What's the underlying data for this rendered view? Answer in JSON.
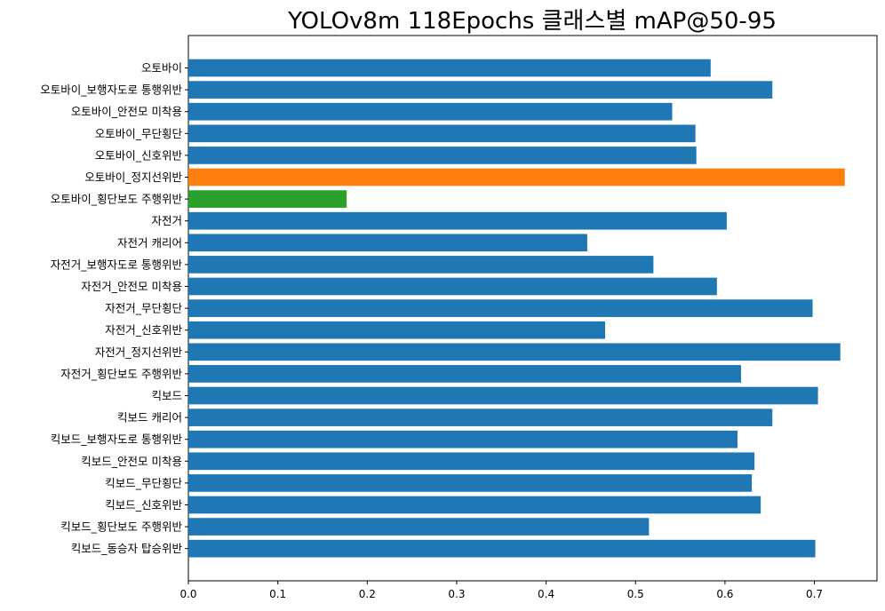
{
  "chart_data": {
    "type": "bar",
    "orientation": "horizontal",
    "title": "YOLOv8m 118Epochs 클래스별 mAP@50-95",
    "xlabel": "",
    "ylabel": "",
    "xlim": [
      0,
      0.77
    ],
    "xticks": [
      "0.0",
      "0.1",
      "0.2",
      "0.3",
      "0.4",
      "0.5",
      "0.6",
      "0.7"
    ],
    "grid": false,
    "categories": [
      "오토바이",
      "오토바이_보행자도로 통행위반",
      "오토바이_안전모 미착용",
      "오토바이_무단횡단",
      "오토바이_신호위반",
      "오토바이_정지선위반",
      "오토바이_횡단보도 주행위반",
      "자전거",
      "자전거 캐리어",
      "자전거_보행자도로 통행위반",
      "자전거_안전모 미착용",
      "자전거_무단횡단",
      "자전거_신호위반",
      "자전거_정지선위반",
      "자전거_횡단보도 주행위반",
      "킥보드",
      "킥보드 캐리어",
      "킥보드_보행자도로 통행위반",
      "킥보드_안전모 미착용",
      "킥보드_무단횡단",
      "킥보드_신호위반",
      "킥보드_횡단보도 주행위반",
      "킥보드_동승자 탑승위반"
    ],
    "values": [
      0.584,
      0.653,
      0.541,
      0.567,
      0.568,
      0.734,
      0.177,
      0.602,
      0.446,
      0.52,
      0.591,
      0.698,
      0.466,
      0.729,
      0.618,
      0.704,
      0.653,
      0.614,
      0.633,
      0.63,
      0.64,
      0.515,
      0.701
    ],
    "bar_colors": [
      "#1f77b4",
      "#1f77b4",
      "#1f77b4",
      "#1f77b4",
      "#1f77b4",
      "#ff7f0e",
      "#2ca02c",
      "#1f77b4",
      "#1f77b4",
      "#1f77b4",
      "#1f77b4",
      "#1f77b4",
      "#1f77b4",
      "#1f77b4",
      "#1f77b4",
      "#1f77b4",
      "#1f77b4",
      "#1f77b4",
      "#1f77b4",
      "#1f77b4",
      "#1f77b4",
      "#1f77b4",
      "#1f77b4"
    ]
  }
}
